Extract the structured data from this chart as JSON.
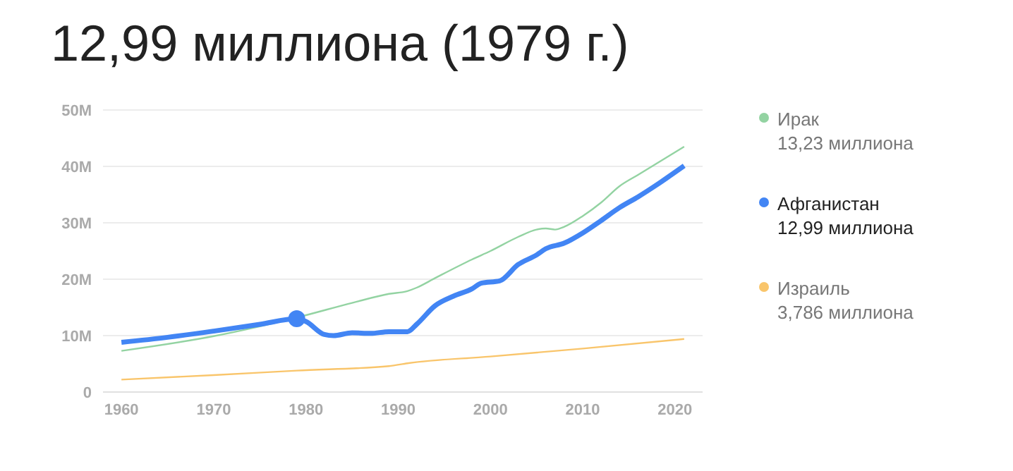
{
  "chart_data": {
    "type": "line",
    "title": "12,99 миллиона (1979 г.)",
    "xlim": [
      1958,
      2023
    ],
    "xticks": [
      1960,
      1970,
      1980,
      1990,
      2000,
      2010,
      2020
    ],
    "ylim": [
      0,
      50
    ],
    "yticks": [
      0,
      {
        "value": 10,
        "label": "10M"
      },
      {
        "value": 20,
        "label": "20M"
      },
      {
        "value": 30,
        "label": "30M"
      },
      {
        "value": 40,
        "label": "40M"
      },
      {
        "value": 50,
        "label": "50M"
      }
    ],
    "grid": "y",
    "legend": "right",
    "series": [
      {
        "name": "Ирак",
        "color": "#93d3a2",
        "x": [
          1960,
          1970,
          1979,
          1985,
          1989,
          1991,
          1992,
          1994,
          1998,
          2000,
          2003,
          2005,
          2006,
          2007,
          2008,
          2010,
          2012,
          2014,
          2016,
          2018,
          2021
        ],
        "values": [
          7.3,
          9.9,
          13.2,
          15.8,
          17.4,
          17.9,
          18.5,
          20.2,
          23.5,
          25,
          27.5,
          28.8,
          29,
          28.8,
          29.3,
          31.2,
          33.6,
          36.5,
          38.5,
          40.5,
          43.5
        ]
      },
      {
        "name": "Афганистан",
        "color": "#4285f4",
        "x": [
          1960,
          1965,
          1970,
          1975,
          1979,
          1980,
          1982,
          1983,
          1985,
          1987,
          1989,
          1991,
          1992,
          1994,
          1996,
          1998,
          1999,
          2001,
          2003,
          2005,
          2006,
          2008,
          2010,
          2012,
          2014,
          2016,
          2018,
          2021
        ],
        "values": [
          8.8,
          9.7,
          10.8,
          12,
          13,
          12.5,
          10.2,
          10,
          10.5,
          10.4,
          10.7,
          10.7,
          12,
          15.3,
          17,
          18.3,
          19.3,
          19.7,
          22.6,
          24.3,
          25.4,
          26.4,
          28.2,
          30.4,
          32.7,
          34.6,
          36.7,
          40.1
        ]
      },
      {
        "name": "Израиль",
        "color": "#f9c56b",
        "x": [
          1960,
          1970,
          1979,
          1989,
          1991,
          2000,
          2010,
          2021
        ],
        "values": [
          2.2,
          3.0,
          3.8,
          4.6,
          5.1,
          6.3,
          7.7,
          9.4
        ]
      },
      {
        "type": "scatter",
        "color": "#4285f4",
        "x": [
          1979
        ],
        "values": [
          13
        ]
      }
    ],
    "annotations": [
      "13,23 миллиона",
      "12,99 миллиона",
      "3,786 миллиона"
    ]
  }
}
